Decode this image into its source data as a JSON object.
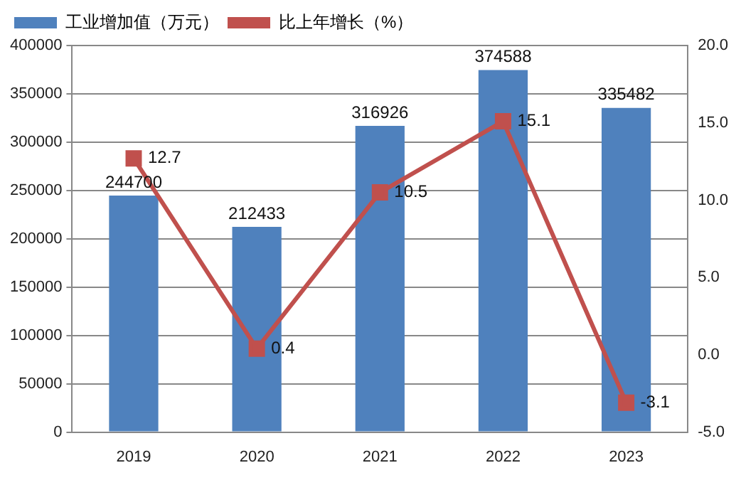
{
  "chart_data": {
    "type": "bar",
    "categories": [
      "2019",
      "2020",
      "2021",
      "2022",
      "2023"
    ],
    "series": [
      {
        "name": "工业增加值（万元）",
        "color": "#4f81bd",
        "values": [
          244700,
          212433,
          316926,
          374588,
          335482
        ]
      },
      {
        "name": "比上年增长（%）",
        "type": "line",
        "axis": "y2",
        "color": "#c0504d",
        "values": [
          12.7,
          0.4,
          10.5,
          15.1,
          -3.1
        ]
      }
    ],
    "ylim": [
      0,
      400000
    ],
    "yticks": [
      0,
      50000,
      100000,
      150000,
      200000,
      250000,
      300000,
      350000,
      400000
    ],
    "y2lim": [
      -5,
      20
    ],
    "y2ticks": [
      {
        "value": -5,
        "label": "-5.0"
      },
      {
        "value": 0,
        "label": "0.0"
      },
      {
        "value": 5,
        "label": "5.0"
      },
      {
        "value": 10,
        "label": "10.0"
      },
      {
        "value": 15,
        "label": "15.0"
      },
      {
        "value": 20,
        "label": "20.0"
      }
    ],
    "grid": "y",
    "legend": "top left",
    "marker": "square",
    "data_labels": true
  }
}
